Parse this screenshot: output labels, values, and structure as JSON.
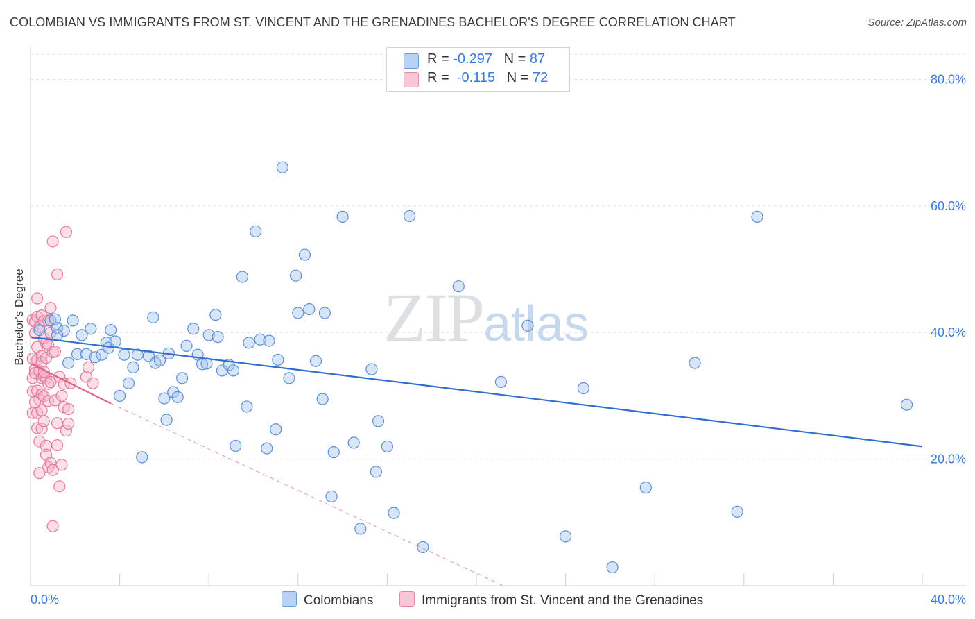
{
  "header": {
    "title": "COLOMBIAN VS IMMIGRANTS FROM ST. VINCENT AND THE GRENADINES BACHELOR'S DEGREE CORRELATION CHART",
    "source": "Source: ZipAtlas.com"
  },
  "watermark": {
    "zip": "ZIP",
    "atlas": "atlas"
  },
  "legend": {
    "row1": {
      "r_label": "R = ",
      "r_value": "-0.297",
      "n_label": "N = ",
      "n_value": "87"
    },
    "row2": {
      "r_label": "R = ",
      "r_value": "-0.115",
      "n_label": "N = ",
      "n_value": "72"
    }
  },
  "bottom_legend": {
    "series1": "Colombians",
    "series2": "Immigrants from St. Vincent and the Grenadines"
  },
  "colors": {
    "blue_fill": "#a9c6ee",
    "blue_stroke": "#5b8fd6",
    "blue_line": "#2f6fd0",
    "pink_fill": "#f6b9cb",
    "pink_stroke": "#e57a9c",
    "pink_line": "#e0608a",
    "grid": "#e3e3e3",
    "axis_text": "#3d7bd9"
  },
  "chart_data": {
    "type": "scatter",
    "title": "COLOMBIAN VS IMMIGRANTS FROM ST. VINCENT AND THE GRENADINES BACHELOR'S DEGREE CORRELATION CHART",
    "xlabel": "",
    "ylabel": "Bachelor's Degree",
    "xlim": [
      0,
      40
    ],
    "ylim": [
      0,
      84
    ],
    "x_tick_labels": [
      "0.0%",
      "40.0%"
    ],
    "y_ticks": [
      20,
      40,
      60,
      80
    ],
    "y_tick_labels": [
      "20.0%",
      "40.0%",
      "60.0%",
      "80.0%"
    ],
    "grid": true,
    "legend_position": "top-center",
    "series": [
      {
        "name": "Colombians",
        "r": -0.297,
        "n": 87,
        "trend": {
          "x": [
            0,
            40
          ],
          "y": [
            39.3,
            22.0
          ]
        },
        "points": [
          [
            0.4,
            40.4
          ],
          [
            0.9,
            41.9
          ],
          [
            1.1,
            42.1
          ],
          [
            1.2,
            40.7
          ],
          [
            1.5,
            40.3
          ],
          [
            1.7,
            35.2
          ],
          [
            1.9,
            41.9
          ],
          [
            2.1,
            36.6
          ],
          [
            2.3,
            39.6
          ],
          [
            2.5,
            36.6
          ],
          [
            2.7,
            40.6
          ],
          [
            2.9,
            36.1
          ],
          [
            3.2,
            36.5
          ],
          [
            3.4,
            38.4
          ],
          [
            3.5,
            37.6
          ],
          [
            3.6,
            40.4
          ],
          [
            3.8,
            38.6
          ],
          [
            4.0,
            30.0
          ],
          [
            4.2,
            36.5
          ],
          [
            4.4,
            32.0
          ],
          [
            4.6,
            34.5
          ],
          [
            4.8,
            36.5
          ],
          [
            5.0,
            20.3
          ],
          [
            5.3,
            36.3
          ],
          [
            5.5,
            42.4
          ],
          [
            5.6,
            35.2
          ],
          [
            5.8,
            35.6
          ],
          [
            6.0,
            29.6
          ],
          [
            6.2,
            36.7
          ],
          [
            6.4,
            30.6
          ],
          [
            6.6,
            29.8
          ],
          [
            6.8,
            32.8
          ],
          [
            7.0,
            37.9
          ],
          [
            7.3,
            40.6
          ],
          [
            7.5,
            36.5
          ],
          [
            7.7,
            35.0
          ],
          [
            7.9,
            35.1
          ],
          [
            8.0,
            39.6
          ],
          [
            8.3,
            42.8
          ],
          [
            8.4,
            39.3
          ],
          [
            8.6,
            34.0
          ],
          [
            8.9,
            34.9
          ],
          [
            9.1,
            34.0
          ],
          [
            9.5,
            48.8
          ],
          [
            9.7,
            28.3
          ],
          [
            9.8,
            38.4
          ],
          [
            10.1,
            56.0
          ],
          [
            10.3,
            38.9
          ],
          [
            10.6,
            21.7
          ],
          [
            10.7,
            38.7
          ],
          [
            11.0,
            24.7
          ],
          [
            11.1,
            35.7
          ],
          [
            11.6,
            32.8
          ],
          [
            11.3,
            66.1
          ],
          [
            11.9,
            49.0
          ],
          [
            12.0,
            43.1
          ],
          [
            12.3,
            52.3
          ],
          [
            12.5,
            43.7
          ],
          [
            12.8,
            35.5
          ],
          [
            13.2,
            43.1
          ],
          [
            13.5,
            14.1
          ],
          [
            13.6,
            21.1
          ],
          [
            13.1,
            29.5
          ],
          [
            14.0,
            58.3
          ],
          [
            14.5,
            22.6
          ],
          [
            14.8,
            9.0
          ],
          [
            15.3,
            34.2
          ],
          [
            15.5,
            18.0
          ],
          [
            15.6,
            26.0
          ],
          [
            16.0,
            22.0
          ],
          [
            16.3,
            11.5
          ],
          [
            17.0,
            58.4
          ],
          [
            17.6,
            6.1
          ],
          [
            19.2,
            47.3
          ],
          [
            21.1,
            32.2
          ],
          [
            22.3,
            41.1
          ],
          [
            24.0,
            7.8
          ],
          [
            24.8,
            31.2
          ],
          [
            26.1,
            2.9
          ],
          [
            27.6,
            15.5
          ],
          [
            29.8,
            35.2
          ],
          [
            31.7,
            11.7
          ],
          [
            32.6,
            58.3
          ],
          [
            39.3,
            28.6
          ],
          [
            1.2,
            39.6
          ],
          [
            6.1,
            26.2
          ],
          [
            9.2,
            22.1
          ]
        ]
      },
      {
        "name": "Immigrants from St. Vincent and the Grenadines",
        "r": -0.115,
        "n": 72,
        "trend": {
          "x": [
            0,
            3.6
          ],
          "y": [
            35.1,
            28.8
          ]
        },
        "trend_dashed": {
          "x": [
            3.6,
            21.2
          ],
          "y": [
            28.8,
            0
          ]
        },
        "points": [
          [
            0.1,
            42.0
          ],
          [
            0.1,
            35.9
          ],
          [
            0.1,
            32.8
          ],
          [
            0.1,
            30.7
          ],
          [
            0.1,
            27.3
          ],
          [
            0.2,
            41.7
          ],
          [
            0.2,
            39.9
          ],
          [
            0.2,
            34.2
          ],
          [
            0.2,
            33.6
          ],
          [
            0.3,
            45.4
          ],
          [
            0.3,
            42.5
          ],
          [
            0.3,
            37.7
          ],
          [
            0.3,
            35.7
          ],
          [
            0.3,
            30.8
          ],
          [
            0.3,
            27.3
          ],
          [
            0.3,
            24.9
          ],
          [
            0.4,
            40.9
          ],
          [
            0.4,
            33.9
          ],
          [
            0.4,
            29.4
          ],
          [
            0.4,
            22.8
          ],
          [
            0.4,
            17.8
          ],
          [
            0.5,
            42.7
          ],
          [
            0.5,
            36.3
          ],
          [
            0.5,
            35.3
          ],
          [
            0.5,
            32.8
          ],
          [
            0.5,
            30.2
          ],
          [
            0.5,
            27.7
          ],
          [
            0.5,
            24.8
          ],
          [
            0.6,
            41.8
          ],
          [
            0.6,
            39.1
          ],
          [
            0.6,
            33.1
          ],
          [
            0.6,
            29.9
          ],
          [
            0.6,
            26.0
          ],
          [
            0.7,
            38.3
          ],
          [
            0.7,
            36.0
          ],
          [
            0.7,
            32.7
          ],
          [
            0.7,
            22.1
          ],
          [
            0.7,
            20.7
          ],
          [
            0.8,
            41.9
          ],
          [
            0.8,
            38.0
          ],
          [
            0.8,
            31.9
          ],
          [
            0.8,
            29.2
          ],
          [
            0.8,
            18.7
          ],
          [
            0.9,
            43.9
          ],
          [
            0.9,
            40.0
          ],
          [
            0.9,
            19.4
          ],
          [
            0.9,
            32.2
          ],
          [
            1.0,
            54.4
          ],
          [
            1.0,
            36.9
          ],
          [
            1.0,
            18.3
          ],
          [
            1.0,
            9.4
          ],
          [
            1.1,
            37.0
          ],
          [
            1.1,
            29.3
          ],
          [
            1.2,
            49.2
          ],
          [
            1.2,
            25.7
          ],
          [
            1.3,
            33.0
          ],
          [
            1.3,
            15.7
          ],
          [
            1.4,
            30.0
          ],
          [
            1.4,
            19.1
          ],
          [
            1.5,
            31.9
          ],
          [
            1.5,
            28.2
          ],
          [
            1.6,
            55.9
          ],
          [
            1.6,
            24.5
          ],
          [
            1.7,
            27.9
          ],
          [
            1.7,
            25.6
          ],
          [
            1.8,
            32.0
          ],
          [
            2.5,
            33.0
          ],
          [
            2.6,
            34.5
          ],
          [
            2.8,
            32.0
          ],
          [
            1.2,
            22.2
          ],
          [
            0.2,
            29.0
          ],
          [
            0.6,
            33.8
          ]
        ]
      }
    ]
  }
}
